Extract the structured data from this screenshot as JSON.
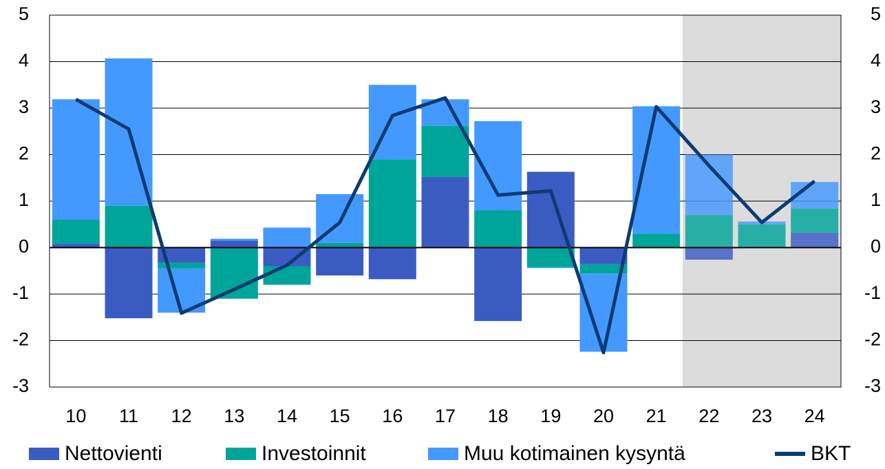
{
  "chart_data": {
    "type": "bar",
    "categories": [
      "10",
      "11",
      "12",
      "13",
      "14",
      "15",
      "16",
      "17",
      "18",
      "19",
      "20",
      "21",
      "22",
      "23",
      "24"
    ],
    "series": [
      {
        "name": "Nettovienti",
        "color": "#3a5cc2",
        "values": [
          0.08,
          -1.52,
          -0.33,
          0.15,
          -0.4,
          -0.6,
          -0.68,
          1.52,
          -1.58,
          1.63,
          -0.36,
          0,
          -0.26,
          0,
          0.32
        ]
      },
      {
        "name": "Investoinnit",
        "color": "#00a599",
        "values": [
          0.52,
          0.9,
          -0.12,
          -1.1,
          -0.4,
          0.1,
          1.9,
          1.1,
          0.8,
          -0.42,
          -0.2,
          0.3,
          0.7,
          0.5,
          0.52
        ]
      },
      {
        "name": "Muu kotimainen kysyntä",
        "color": "#4499ff",
        "values": [
          2.59,
          3.17,
          -0.95,
          0.04,
          0.43,
          1.05,
          1.6,
          0.57,
          1.92,
          -0.02,
          -1.68,
          2.74,
          1.3,
          0.06,
          0.57
        ]
      },
      {
        "name": "BKT",
        "type": "line",
        "color": "#0d3b72",
        "values": [
          3.19,
          2.55,
          -1.41,
          -0.9,
          -0.38,
          0.54,
          2.84,
          3.22,
          1.13,
          1.22,
          -2.26,
          3.03,
          1.76,
          0.54,
          1.43
        ]
      }
    ],
    "ylim": [
      -3,
      5
    ],
    "yticks": [
      -3,
      -2,
      -1,
      0,
      1,
      2,
      3,
      4,
      5
    ],
    "y2lim": [
      -3,
      5
    ],
    "y2ticks": [
      -3,
      -2,
      -1,
      0,
      1,
      2,
      3,
      4,
      5
    ],
    "grid": true,
    "legend": "bottom"
  }
}
